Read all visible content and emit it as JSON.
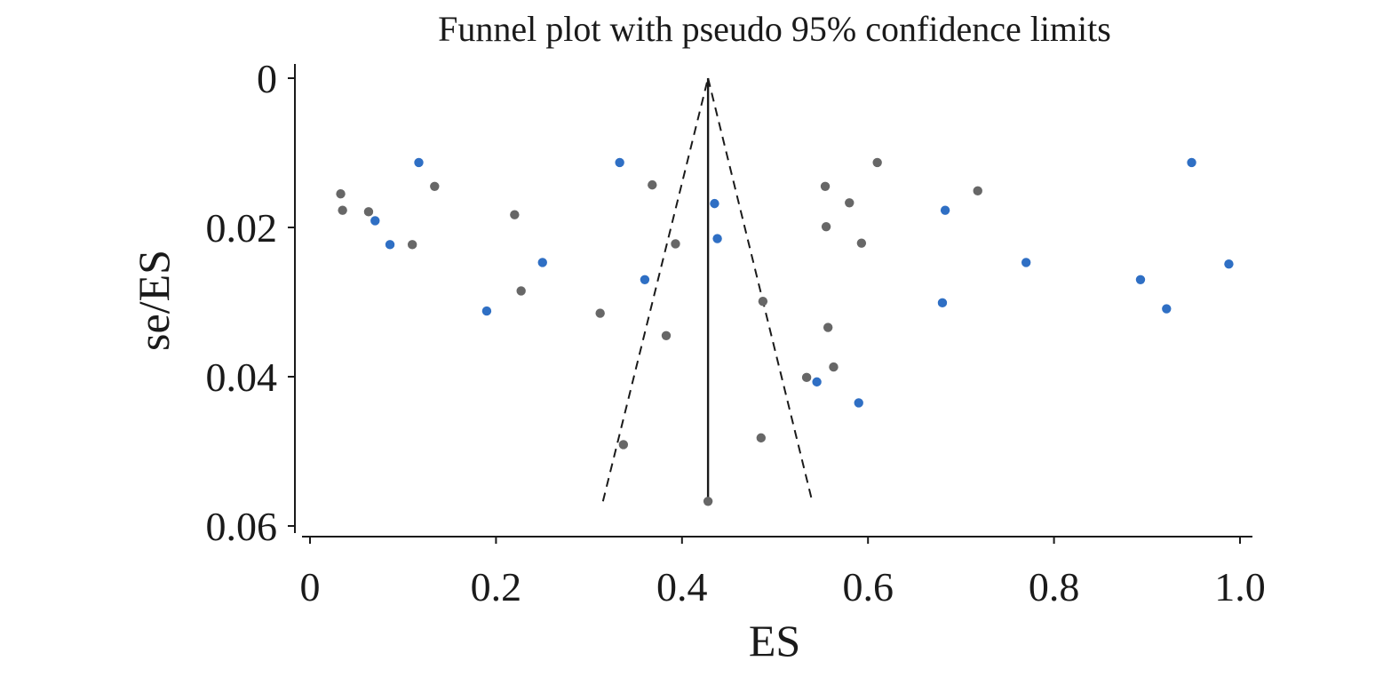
{
  "chart_data": {
    "type": "scatter",
    "title": "Funnel plot with pseudo 95% confidence limits",
    "xlabel": "ES",
    "ylabel": "se/ES",
    "xlim": [
      0,
      1.0
    ],
    "ylim": [
      0,
      0.06
    ],
    "y_inverted": true,
    "grid": false,
    "x_ticks": [
      {
        "value": 0,
        "label": "0"
      },
      {
        "value": 0.2,
        "label": "0.2"
      },
      {
        "value": 0.4,
        "label": "0.4"
      },
      {
        "value": 0.6,
        "label": "0.6"
      },
      {
        "value": 0.8,
        "label": "0.8"
      },
      {
        "value": 1.0,
        "label": "1.0"
      }
    ],
    "y_ticks": [
      {
        "value": 0,
        "label": "0"
      },
      {
        "value": 0.02,
        "label": "0.02"
      },
      {
        "value": 0.04,
        "label": "0.04"
      },
      {
        "value": 0.06,
        "label": "0.06"
      }
    ],
    "pooled_estimate": 0.428,
    "funnel": {
      "apex": [
        0.428,
        0.0
      ],
      "lower_left": [
        0.315,
        0.0567
      ],
      "lower_right": [
        0.54,
        0.0567
      ],
      "center_line_bottom": [
        0.428,
        0.0567
      ]
    },
    "colors": {
      "blue_points": "#2f6fc4",
      "gray_points": "#676767",
      "lines": "#1a1a1a"
    },
    "series": [
      {
        "color_key": "blue_points",
        "points": [
          [
            0.117,
            0.0113
          ],
          [
            0.07,
            0.0191
          ],
          [
            0.086,
            0.0223
          ],
          [
            0.19,
            0.0312
          ],
          [
            0.25,
            0.0247
          ],
          [
            0.333,
            0.0113
          ],
          [
            0.36,
            0.027
          ],
          [
            0.435,
            0.0168
          ],
          [
            0.438,
            0.0215
          ],
          [
            0.545,
            0.0407
          ],
          [
            0.59,
            0.0435
          ],
          [
            0.68,
            0.0301
          ],
          [
            0.683,
            0.0177
          ],
          [
            0.77,
            0.0247
          ],
          [
            0.893,
            0.027
          ],
          [
            0.921,
            0.0309
          ],
          [
            0.948,
            0.0113
          ],
          [
            0.988,
            0.0249
          ]
        ]
      },
      {
        "color_key": "gray_points",
        "points": [
          [
            0.033,
            0.0155
          ],
          [
            0.035,
            0.0177
          ],
          [
            0.063,
            0.0179
          ],
          [
            0.11,
            0.0223
          ],
          [
            0.134,
            0.0145
          ],
          [
            0.22,
            0.0183
          ],
          [
            0.227,
            0.0285
          ],
          [
            0.312,
            0.0315
          ],
          [
            0.337,
            0.0491
          ],
          [
            0.368,
            0.0143
          ],
          [
            0.383,
            0.0345
          ],
          [
            0.393,
            0.0222
          ],
          [
            0.428,
            0.0567
          ],
          [
            0.485,
            0.0482
          ],
          [
            0.487,
            0.0299
          ],
          [
            0.534,
            0.0401
          ],
          [
            0.554,
            0.0145
          ],
          [
            0.555,
            0.0199
          ],
          [
            0.557,
            0.0334
          ],
          [
            0.563,
            0.0387
          ],
          [
            0.58,
            0.0167
          ],
          [
            0.593,
            0.0221
          ],
          [
            0.61,
            0.0113
          ],
          [
            0.718,
            0.0151
          ]
        ]
      }
    ]
  }
}
